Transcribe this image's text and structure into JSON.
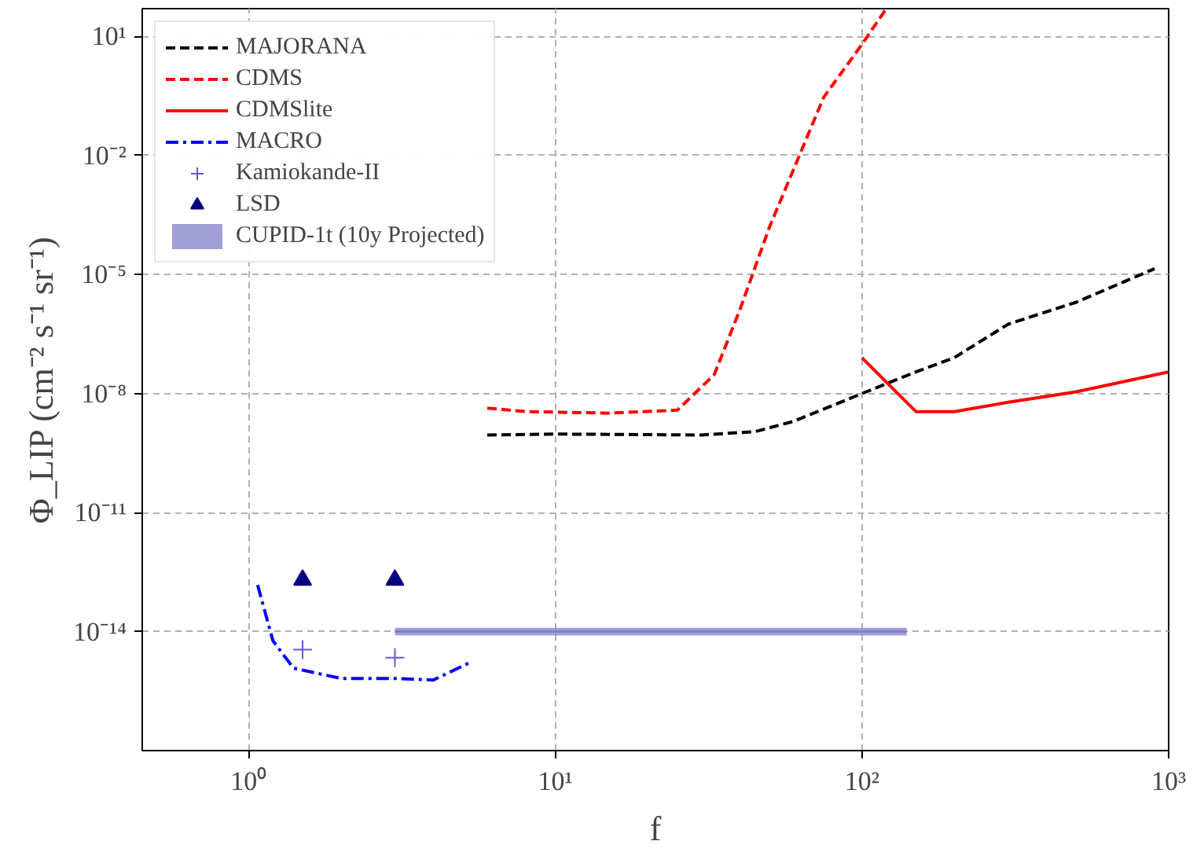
{
  "chart_data": {
    "type": "line",
    "xlabel": "f",
    "ylabel": "Φ_LIP (cm⁻² s⁻¹ sr⁻¹)",
    "log": "xy",
    "grid": true,
    "legend": "top left",
    "xlim": [
      0.45,
      1000
    ],
    "ylim": [
      1e-17,
      50
    ],
    "xticks": [
      {
        "value": 1,
        "label": "10⁰"
      },
      {
        "value": 10,
        "label": "10¹"
      },
      {
        "value": 100,
        "label": "10²"
      },
      {
        "value": 1000,
        "label": "10³"
      }
    ],
    "yticks": [
      {
        "value": 1e-14,
        "label": "10⁻¹⁴"
      },
      {
        "value": 1e-11,
        "label": "10⁻¹¹"
      },
      {
        "value": 1e-08,
        "label": "10⁻⁸"
      },
      {
        "value": 1e-05,
        "label": "10⁻⁵"
      },
      {
        "value": 0.01,
        "label": "10⁻²"
      },
      {
        "value": 10,
        "label": "10¹"
      }
    ],
    "series": [
      {
        "name": "MAJORANA",
        "line_style": "dashed",
        "color": "#000000",
        "x": [
          6,
          10,
          30,
          45,
          60,
          100,
          150,
          200,
          300,
          500,
          900
        ],
        "values": [
          9e-10,
          9.5e-10,
          9e-10,
          1.1e-09,
          2e-09,
          1e-08,
          3.5e-08,
          8e-08,
          5.6e-07,
          2e-06,
          1.4e-05
        ]
      },
      {
        "name": "CDMS",
        "line_style": "dashed",
        "color": "#ff0000",
        "x": [
          6,
          8,
          15,
          25,
          33,
          40,
          50,
          75,
          100,
          120
        ],
        "values": [
          4.3e-09,
          3.5e-09,
          3.2e-09,
          3.8e-09,
          3e-08,
          1.3e-06,
          0.00016,
          0.29,
          6.3,
          50
        ]
      },
      {
        "name": "CDMSlite",
        "line_style": "solid",
        "color": "#ff0000",
        "x": [
          100,
          150,
          200,
          300,
          500,
          1000
        ],
        "values": [
          8e-08,
          3.5e-09,
          3.5e-09,
          6e-09,
          1.1e-08,
          3.5e-08
        ]
      },
      {
        "name": "MACRO",
        "line_style": "dashdot",
        "color": "#0000ff",
        "x": [
          1.07,
          1.2,
          1.4,
          2,
          3,
          4,
          5.3
        ],
        "values": [
          1.5e-13,
          5.9e-15,
          1.2e-15,
          6.6e-16,
          6.6e-16,
          6e-16,
          1.7e-15
        ]
      },
      {
        "name": "Kamiokande-II",
        "type": "scatter",
        "marker": "cross",
        "color": "#6a5acd",
        "x": [
          1.5,
          3
        ],
        "values": [
          3.5e-15,
          2.2e-15
        ]
      },
      {
        "name": "LSD",
        "type": "scatter",
        "marker": "triangle",
        "color": "#000080",
        "x": [
          1.5,
          3
        ],
        "values": [
          2e-13,
          2e-13
        ]
      },
      {
        "name": "CUPID-1t (10y Projected)",
        "line_style": "solid",
        "color": "#8080c8",
        "x": [
          3,
          140
        ],
        "values": [
          1e-14,
          1e-14
        ],
        "lower": [
          8e-15,
          8e-15
        ],
        "upper": [
          1.25e-14,
          1.25e-14
        ]
      }
    ]
  }
}
